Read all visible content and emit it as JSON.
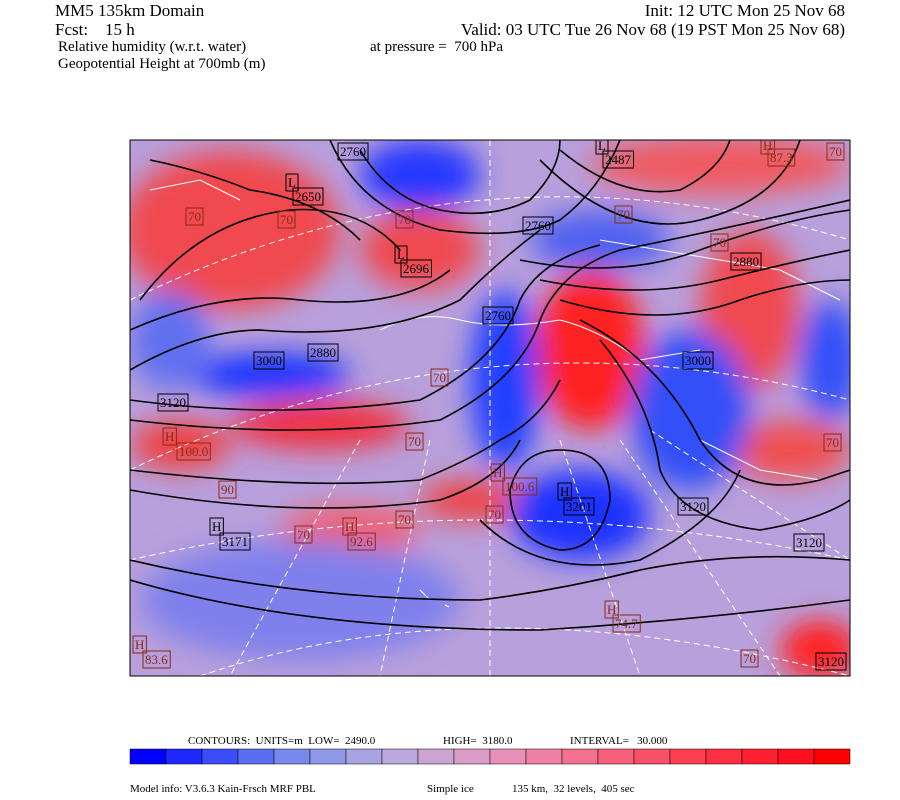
{
  "header": {
    "title": "MM5 135km Domain",
    "init": "Init: 12 UTC Mon 25 Nov 68",
    "forecast": "Fcst:    15 h",
    "valid": "Valid: 03 UTC Tue 26 Nov 68 (19 PST Mon 25 Nov 68)",
    "field1": "Relative humidity (w.r.t. water)",
    "pressure": "at pressure =  700 hPa",
    "field2": "Geopotential Height at 700mb (m)"
  },
  "map_labels": [
    "2760",
    "L",
    "2650",
    "70",
    "70",
    "70",
    "L",
    "2696",
    "2760",
    "L",
    "2487",
    "70",
    "H",
    "87.3",
    "70",
    "70",
    "2880",
    "2760",
    "3000",
    "3000",
    "2880",
    "70",
    "3120",
    "H",
    "100.0",
    "90",
    "70",
    "H",
    "100.6",
    "H",
    "3201",
    "3120",
    "70",
    "70",
    "H",
    "3171",
    "70",
    "H",
    "92.6",
    "3120",
    "H",
    "74.7",
    "70",
    "3120",
    "H",
    "83.6",
    "70"
  ],
  "colorbar": [
    "#0000ff",
    "#1e28ff",
    "#3c4cf8",
    "#5a6cf0",
    "#7888ec",
    "#9098e8",
    "#a8a4e4",
    "#bca8dc",
    "#cca4d4",
    "#dc9cc8",
    "#e890b8",
    "#f080a4",
    "#f47090",
    "#f8607c",
    "#f85068",
    "#fc4050",
    "#fc3040",
    "#ff2030",
    "#ff1020",
    "#ff0000"
  ],
  "footer": {
    "contours": "CONTOURS:  UNITS=m  LOW=  2490.0",
    "high": "HIGH=  3180.0",
    "interval": "INTERVAL=   30.000",
    "model": "Model info: V3.6.3 Kain-Frsch MRF PBL",
    "ice": "Simple ice",
    "resolution": "135 km,  32 levels,  405 sec"
  }
}
